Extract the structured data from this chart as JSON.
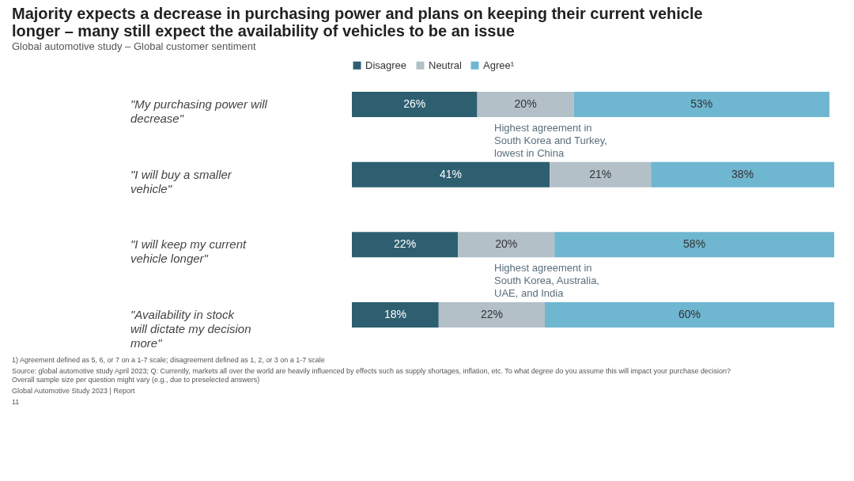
{
  "chart_data": {
    "type": "bar",
    "orientation": "horizontal",
    "stacked": true,
    "title": "Majority expects a decrease in purchasing power and plans on keeping their current vehicle longer – many still expect the availability of vehicles to be an issue",
    "subtitle": "Global automotive study – Global customer sentiment",
    "categories": [
      "\"My purchasing power will decrease\"",
      "\"I will buy a smaller vehicle\"",
      "\"I will keep my current vehicle longer\"",
      "\"Availability in stock will dictate my decision more\""
    ],
    "series": [
      {
        "name": "Disagree",
        "color": "#2d5f70",
        "values": [
          26,
          41,
          22,
          18
        ],
        "value_labels": [
          "26%",
          "41%",
          "22%",
          "18%"
        ]
      },
      {
        "name": "Neutral",
        "color": "#b3c0c8",
        "values": [
          20,
          21,
          20,
          22
        ],
        "value_labels": [
          "20%",
          "21%",
          "20%",
          "22%"
        ]
      },
      {
        "name": "Agree¹",
        "color": "#6fb6d0",
        "values": [
          53,
          38,
          58,
          60
        ],
        "value_labels": [
          "53%",
          "38%",
          "58%",
          "60%"
        ]
      }
    ],
    "legend": "top",
    "tick_labels": "y",
    "grid": false,
    "annotations": [
      "Highest agreement in South Korea and Turkey, lowest in China",
      "Highest agreement in South Korea, Australia, UAE, and India",
      "1) Agreement defined as 5, 6, or 7 on a 1-7 scale; disagreement defined as 1, 2, or 3 on a 1-7 scale",
      "Source: global automotive study April 2023; Q: Currently, markets all over the world are heavily influenced by effects such as supply shortages, inflation, etc. To what degree do you assume this will impact your purchase decision? Overall sample size per question might vary (e.g., due to preselected answers)",
      "Global Automotive Study 2023 | Report",
      "11"
    ]
  }
}
